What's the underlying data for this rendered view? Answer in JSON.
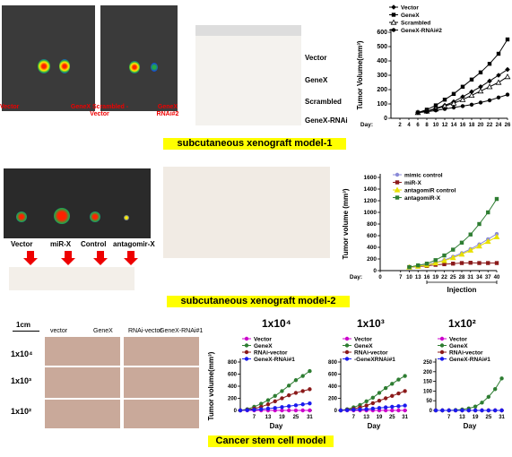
{
  "section1": {
    "mouse_labels": [
      "Vector",
      "GeneX Scrambled -Vector",
      "GeneX RNAi#2"
    ],
    "tumor_labels": [
      "Vector",
      "GeneX",
      "Scrambled",
      "GeneX-RNAi"
    ],
    "band_title": "subcutaneous xenograft model-1"
  },
  "section2": {
    "mouse_labels": [
      "Vector",
      "miR-X",
      "Control",
      "antagomir-X"
    ],
    "band_title": "subcutaneous xenograft model-2",
    "injection_label": "Injection"
  },
  "section3": {
    "scale": "1cm",
    "photo_headers_left": [
      "vector",
      "GeneX"
    ],
    "photo_headers_right": [
      "RNAi-vector",
      "GeneX-RNAi#1"
    ],
    "row_labels": [
      "1x10⁴",
      "1x10³",
      "1x10²"
    ],
    "panel_titles": [
      "1x10⁴",
      "1x10³",
      "1x10²"
    ],
    "band_title": "Cancer stem cell model"
  },
  "chart_data": [
    {
      "type": "line",
      "ylabel": "Tumor Volume(mm³)",
      "xlabel": "Day:",
      "x": [
        2,
        4,
        6,
        8,
        10,
        12,
        14,
        16,
        18,
        20,
        22,
        24,
        26
      ],
      "ylim": [
        0,
        600
      ],
      "yticks": [
        0,
        100,
        200,
        300,
        400,
        500,
        600
      ],
      "series": [
        {
          "name": "Vector",
          "color": "#000000",
          "marker": "diamond",
          "values": [
            null,
            null,
            40,
            50,
            70,
            90,
            115,
            150,
            185,
            220,
            260,
            300,
            340
          ]
        },
        {
          "name": "GeneX",
          "color": "#000000",
          "marker": "square",
          "values": [
            null,
            null,
            40,
            60,
            90,
            130,
            170,
            220,
            270,
            320,
            380,
            450,
            550
          ]
        },
        {
          "name": "Scrambled",
          "color": "#000000",
          "marker": "triangle-open",
          "values": [
            null,
            null,
            40,
            50,
            65,
            85,
            105,
            130,
            160,
            190,
            220,
            250,
            290
          ]
        },
        {
          "name": "GeneX-RNAi#2",
          "color": "#000000",
          "marker": "circle",
          "values": [
            null,
            null,
            40,
            45,
            55,
            65,
            75,
            85,
            95,
            110,
            125,
            145,
            165
          ]
        }
      ]
    },
    {
      "type": "line",
      "ylabel": "Tumor volume (mm³)",
      "xlabel": "Day:",
      "x": [
        0,
        7,
        10,
        13,
        16,
        19,
        22,
        25,
        28,
        31,
        34,
        37,
        40
      ],
      "ylim": [
        0,
        1600
      ],
      "yticks": [
        0,
        200,
        400,
        600,
        800,
        1000,
        1200,
        1400,
        1600
      ],
      "series": [
        {
          "name": "mimic control",
          "color": "#8a8ad8",
          "marker": "circle",
          "values": [
            null,
            null,
            60,
            80,
            100,
            140,
            180,
            240,
            300,
            370,
            450,
            540,
            630
          ]
        },
        {
          "name": "miR-X",
          "color": "#8b1a1a",
          "marker": "square",
          "values": [
            null,
            null,
            60,
            70,
            80,
            100,
            110,
            120,
            130,
            135,
            130,
            130,
            130
          ]
        },
        {
          "name": "antagomiR control",
          "color": "#e8e000",
          "marker": "triangle",
          "values": [
            null,
            null,
            60,
            75,
            95,
            130,
            170,
            220,
            280,
            350,
            420,
            500,
            580
          ]
        },
        {
          "name": "antagomiR-X",
          "color": "#2e7d32",
          "marker": "square",
          "values": [
            null,
            null,
            60,
            90,
            120,
            180,
            260,
            360,
            480,
            620,
            800,
            1000,
            1230
          ]
        }
      ]
    },
    {
      "type": "line",
      "title": "1x10⁴",
      "ylabel": "Tumor volume(mm³)",
      "xlabel": "Day",
      "x": [
        1,
        4,
        7,
        10,
        13,
        16,
        19,
        22,
        25,
        28,
        31
      ],
      "ylim": [
        0,
        800
      ],
      "yticks": [
        0,
        200,
        400,
        600,
        800
      ],
      "xticks": [
        7,
        13,
        19,
        25,
        31
      ],
      "series": [
        {
          "name": "Vector",
          "color": "#cc00cc",
          "values": [
            0,
            0,
            0,
            0,
            0,
            0,
            0,
            0,
            0,
            0,
            0
          ]
        },
        {
          "name": "GeneX",
          "color": "#2e7d32",
          "values": [
            0,
            20,
            60,
            110,
            170,
            240,
            320,
            410,
            500,
            570,
            650
          ]
        },
        {
          "name": "RNAi-vector",
          "color": "#8b1a1a",
          "values": [
            0,
            10,
            30,
            60,
            100,
            150,
            200,
            250,
            290,
            320,
            350
          ]
        },
        {
          "name": "GeneX-RNAi#1",
          "color": "#1a1aee",
          "values": [
            0,
            5,
            10,
            20,
            30,
            40,
            55,
            70,
            85,
            100,
            115
          ]
        }
      ]
    },
    {
      "type": "line",
      "title": "1x10³",
      "xlabel": "Day",
      "x": [
        1,
        4,
        7,
        10,
        13,
        16,
        19,
        22,
        25,
        28,
        31
      ],
      "ylim": [
        0,
        800
      ],
      "yticks": [
        0,
        200,
        400,
        600,
        800
      ],
      "xticks": [
        7,
        13,
        19,
        25,
        31
      ],
      "series": [
        {
          "name": "Vector",
          "color": "#cc00cc",
          "values": [
            0,
            0,
            0,
            0,
            0,
            0,
            0,
            0,
            0,
            0,
            0
          ]
        },
        {
          "name": "GeneX",
          "color": "#2e7d32",
          "values": [
            0,
            20,
            50,
            90,
            150,
            210,
            290,
            370,
            440,
            510,
            570
          ]
        },
        {
          "name": "RNAi-vector",
          "color": "#8b1a1a",
          "values": [
            0,
            10,
            25,
            50,
            80,
            120,
            160,
            200,
            240,
            280,
            320
          ]
        },
        {
          "name": "-GeneXRNAi#1",
          "color": "#1a1aee",
          "values": [
            0,
            5,
            10,
            15,
            20,
            30,
            40,
            50,
            60,
            70,
            80
          ]
        }
      ]
    },
    {
      "type": "line",
      "title": "1x10²",
      "xlabel": "Day",
      "x": [
        1,
        4,
        7,
        10,
        13,
        16,
        19,
        22,
        25,
        28,
        31
      ],
      "ylim": [
        0,
        250
      ],
      "yticks": [
        0,
        50,
        100,
        150,
        200,
        250
      ],
      "xticks": [
        7,
        13,
        19,
        25,
        31
      ],
      "series": [
        {
          "name": "Vector",
          "color": "#cc00cc",
          "values": [
            0,
            0,
            0,
            0,
            0,
            0,
            0,
            0,
            0,
            0,
            0
          ]
        },
        {
          "name": "GeneX",
          "color": "#2e7d32",
          "values": [
            0,
            0,
            0,
            2,
            5,
            10,
            20,
            40,
            70,
            110,
            165
          ]
        },
        {
          "name": "RNAi-vector",
          "color": "#8b1a1a",
          "values": [
            0,
            0,
            0,
            0,
            0,
            0,
            0,
            0,
            0,
            0,
            0
          ]
        },
        {
          "name": "GeneX-RNAi#1",
          "color": "#1a1aee",
          "values": [
            0,
            0,
            0,
            0,
            0,
            0,
            0,
            0,
            0,
            0,
            0
          ]
        }
      ]
    }
  ]
}
